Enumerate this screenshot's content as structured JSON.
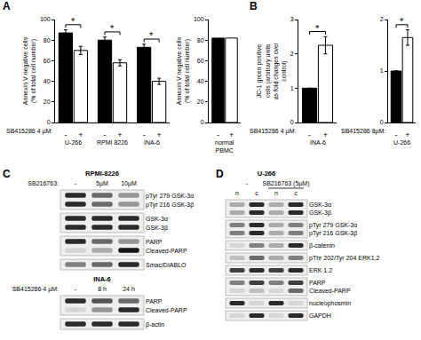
{
  "panel_labels": [
    "A",
    "B",
    "C",
    "D"
  ],
  "chart_data": [
    {
      "type": "bar",
      "y_label": "Annexin V negative cells (% of total cell number)",
      "treatment_label": "SB415286 4 µM:",
      "groups": [
        "U-266",
        "RPMI 8226",
        "INA-6"
      ],
      "categories": [
        "-",
        "+",
        "-",
        "+",
        "-",
        "+"
      ],
      "values": [
        87,
        70,
        80,
        58,
        73,
        40
      ],
      "errors": [
        3,
        4,
        3,
        3,
        3,
        3
      ],
      "colors": [
        "#000000",
        "#ffffff",
        "#000000",
        "#ffffff",
        "#000000",
        "#ffffff"
      ],
      "ylim": [
        0,
        100
      ],
      "yticks": [
        0,
        20,
        40,
        60,
        80,
        100
      ],
      "significance": [
        {
          "text": "*",
          "between": [
            0,
            1
          ]
        },
        {
          "text": "*",
          "between": [
            2,
            3
          ]
        },
        {
          "text": "*",
          "between": [
            4,
            5
          ]
        }
      ]
    },
    {
      "type": "bar",
      "y_label": "Annexin V negative cells (% of total cell number)",
      "groups": [
        "normal PBMC"
      ],
      "categories": [
        "-",
        "+"
      ],
      "values": [
        82,
        82
      ],
      "colors": [
        "#000000",
        "#ffffff"
      ],
      "ylim": [
        0,
        100
      ],
      "yticks": [
        0,
        20,
        40,
        60,
        80,
        100
      ]
    },
    {
      "type": "bar",
      "y_label": "JC-1 green positive cells (arbitrary units as fold changes over control)",
      "treatment_label": "SB415286 4 µM:",
      "groups": [
        "INA-6"
      ],
      "categories": [
        "-",
        "+"
      ],
      "values": [
        1,
        2.25
      ],
      "errors": [
        0,
        0.25
      ],
      "colors": [
        "#000000",
        "#ffffff"
      ],
      "ylim": [
        0,
        3
      ],
      "yticks": [
        0,
        1,
        2,
        3
      ],
      "significance": [
        {
          "text": "*",
          "between": [
            0,
            1
          ]
        }
      ]
    },
    {
      "type": "bar",
      "treatment_label": "SB415286 8µM:",
      "groups": [
        "U-266"
      ],
      "categories": [
        "-",
        "+"
      ],
      "values": [
        1,
        1.65
      ],
      "errors": [
        0,
        0.15
      ],
      "colors": [
        "#000000",
        "#ffffff"
      ],
      "ylim": [
        0,
        2
      ],
      "yticks": [
        0,
        1,
        2
      ],
      "significance": [
        {
          "text": "*",
          "between": [
            0,
            1
          ]
        }
      ]
    }
  ],
  "blots": [
    {
      "sections": [
        {
          "title": "RPMI-8226",
          "treatment_label": "SB216763:",
          "lanes": [
            "-",
            "5µM",
            "10µM"
          ],
          "rows": [
            {
              "labels": [
                "pTyr 279 GSK-3α",
                "pTyr 216 GSK-3β"
              ],
              "bands": [
                [
                  0.9,
                  0.6,
                  0.4
                ],
                [
                  0.9,
                  0.6,
                  0.4
                ]
              ]
            },
            {
              "labels": [
                "GSK-3α",
                "GSK-3β"
              ],
              "bands": [
                [
                  0.9,
                  0.9,
                  0.9
                ],
                [
                  0.9,
                  0.9,
                  0.9
                ]
              ]
            },
            {
              "labels": [
                "PARP",
                "Cleaved-PARP"
              ],
              "bands": [
                [
                  0.9,
                  0.6,
                  0.4
                ],
                [
                  0.1,
                  0.3,
                  1.0
                ]
              ]
            },
            {
              "labels": [
                "Smac/DIABLO"
              ],
              "bands": [
                [
                  0.5,
                  0.6,
                  0.9
                ]
              ]
            }
          ]
        },
        {
          "title": "INA-6",
          "treatment_label": "SB415286 4 µM:",
          "lanes": [
            "-",
            "8 h",
            "24 h"
          ],
          "rows": [
            {
              "labels": [
                "PARP",
                "Cleaved-PARP"
              ],
              "bands": [
                [
                  0.9,
                  0.7,
                  0.6
                ],
                [
                  0.1,
                  0.4,
                  0.9
                ]
              ]
            },
            {
              "labels": [
                "β-actin"
              ],
              "bands": [
                [
                  0.9,
                  0.9,
                  0.9
                ]
              ]
            }
          ]
        }
      ]
    },
    {
      "sections": [
        {
          "title": "U-266",
          "treatment": [
            {
              "label": "-",
              "lanes": 2
            },
            {
              "label": "SB216763 (5µM)",
              "lanes": 2
            }
          ],
          "lanes": [
            "n",
            "c",
            "n",
            "c"
          ],
          "rows": [
            {
              "labels": [
                "GSK-3α",
                "GSK-3β"
              ],
              "bands": [
                [
                  0.3,
                  0.9,
                  0.3,
                  0.9
                ],
                [
                  0.3,
                  0.9,
                  0.3,
                  0.9
                ]
              ]
            },
            {
              "labels": [
                "pTyr 279 GSK-3α",
                "pTyr 216 GSK-3β"
              ],
              "bands": [
                [
                  0.5,
                  0.9,
                  0.3,
                  0.5
                ],
                [
                  0.5,
                  0.9,
                  0.3,
                  0.5
                ]
              ]
            },
            {
              "labels": [
                "β-catenin"
              ],
              "bands": [
                [
                  0.1,
                  0.5,
                  0.3,
                  0.9
                ]
              ]
            },
            {
              "labels": [
                "pThr 202/Tyr 204 ERK1,2"
              ],
              "bands": [
                [
                  0.2,
                  0.6,
                  0.3,
                  0.5
                ]
              ]
            },
            {
              "labels": [
                "ERK 1,2"
              ],
              "bands": [
                [
                  0.8,
                  0.9,
                  0.8,
                  0.9
                ]
              ]
            },
            {
              "labels": [
                "PARP",
                "Cleaved-PARP"
              ],
              "bands": [
                [
                  0.5,
                  0.8,
                  0.5,
                  0.8
                ],
                [
                  0.1,
                  0.2,
                  0.1,
                  0.6
                ]
              ]
            },
            {
              "labels": [
                "nucleophosmin"
              ],
              "bands": [
                [
                  0.9,
                  0.1,
                  0.9,
                  0.1
                ]
              ]
            },
            {
              "labels": [
                "GAPDH"
              ],
              "bands": [
                [
                  0.1,
                  0.9,
                  0.1,
                  0.9
                ]
              ]
            }
          ]
        }
      ]
    }
  ]
}
